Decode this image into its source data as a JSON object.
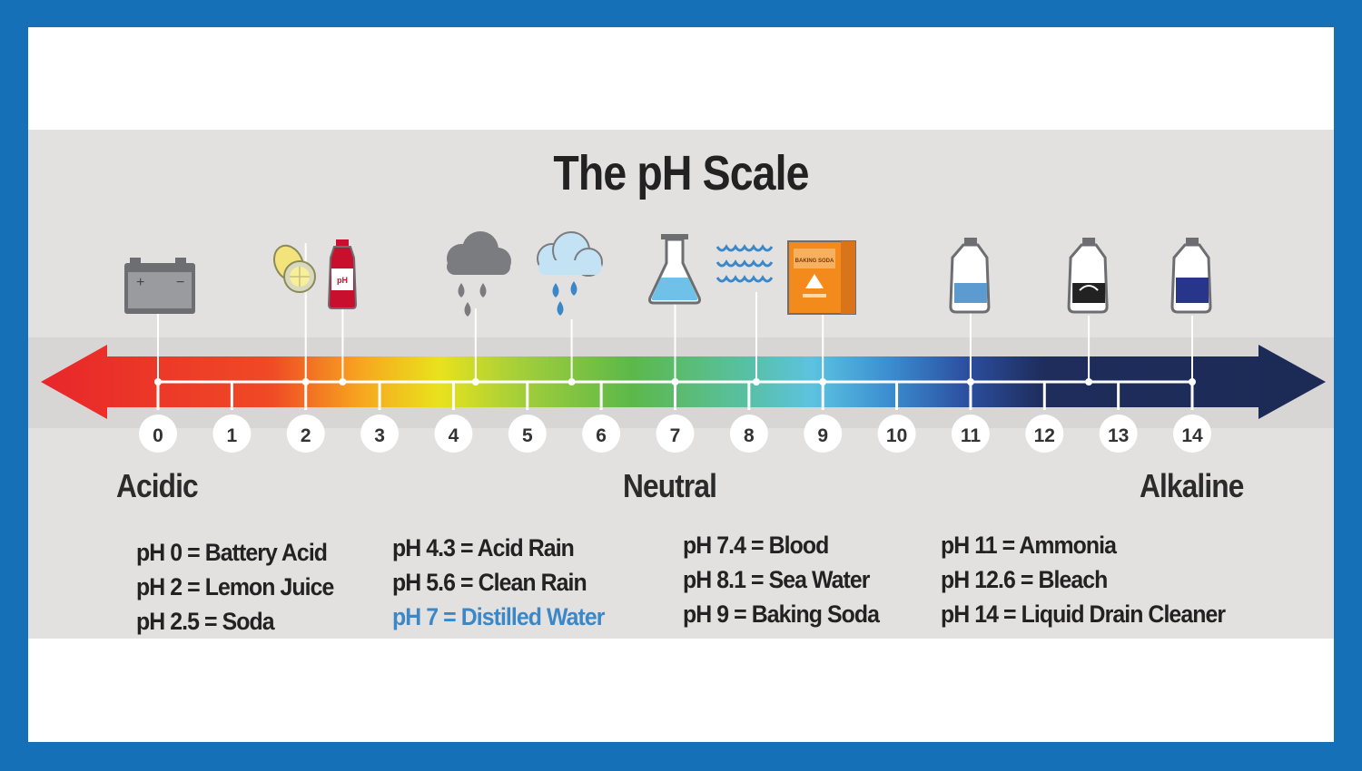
{
  "title": "The pH Scale",
  "regions": {
    "acidic": "Acidic",
    "neutral": "Neutral",
    "alkaline": "Alkaline"
  },
  "ticks": [
    "0",
    "1",
    "2",
    "3",
    "4",
    "5",
    "6",
    "7",
    "8",
    "9",
    "10",
    "11",
    "12",
    "13",
    "14"
  ],
  "substances": [
    {
      "label": "pH 0 = Battery Acid",
      "ph": 0,
      "icon": "battery-icon"
    },
    {
      "label": "pH 2 = Lemon Juice",
      "ph": 2,
      "icon": "lemon-icon"
    },
    {
      "label": "pH 2.5 = Soda",
      "ph": 2.5,
      "icon": "soda-bottle-icon"
    },
    {
      "label": "pH 4.3 = Acid Rain",
      "ph": 4.3,
      "icon": "acid-rain-cloud-icon"
    },
    {
      "label": "pH 5.6 = Clean Rain",
      "ph": 5.6,
      "icon": "clean-rain-cloud-icon"
    },
    {
      "label": "pH 7 = Distilled Water",
      "ph": 7,
      "icon": "flask-icon",
      "highlight": true
    },
    {
      "label": "pH 7.4 = Blood",
      "ph": 7.4
    },
    {
      "label": "pH 8.1 = Sea Water",
      "ph": 8.1,
      "icon": "waves-icon"
    },
    {
      "label": "pH 9 = Baking Soda",
      "ph": 9,
      "icon": "baking-soda-box-icon"
    },
    {
      "label": "pH 11 = Ammonia",
      "ph": 11,
      "icon": "ammonia-jug-icon"
    },
    {
      "label": "pH 12.6 = Bleach",
      "ph": 12.6,
      "icon": "bleach-jug-icon"
    },
    {
      "label": "pH 14 = Liquid Drain Cleaner",
      "ph": 14,
      "icon": "drain-cleaner-jug-icon"
    }
  ],
  "icon_labels": {
    "soda": "pH",
    "baking_soda": "BAKING SODA"
  },
  "colors": {
    "frame": "#1570b8",
    "acid": "#e8262a",
    "neutral": "#5cb84a",
    "alkaline": "#1e2d5c",
    "highlight": "#3b88c8"
  }
}
